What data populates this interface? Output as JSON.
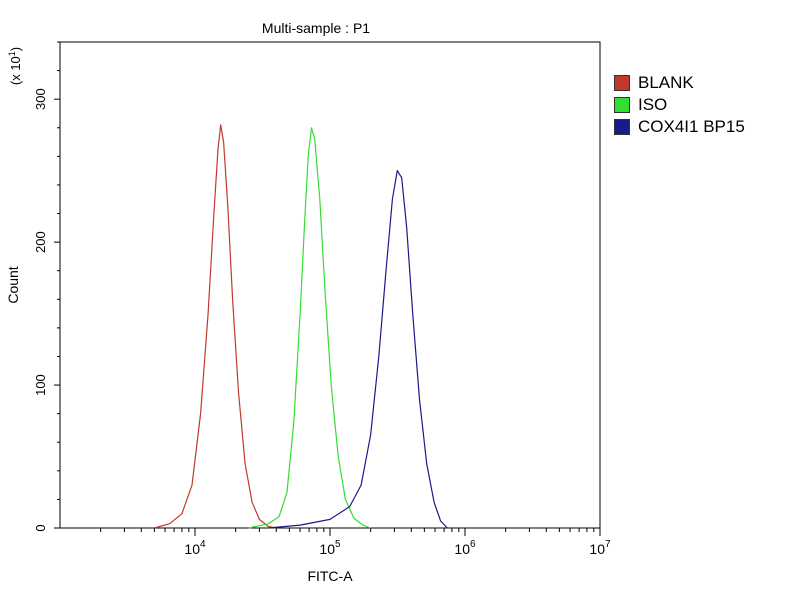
{
  "chart_data": {
    "type": "line",
    "title": "Multi-sample : P1",
    "xlabel": "FITC-A",
    "ylabel": "Count",
    "y_multiplier": "(x 10",
    "y_multiplier_exp": "1",
    "x_scale": "log",
    "xlim": [
      1000,
      10000000
    ],
    "ylim": [
      0,
      340
    ],
    "y_ticks": [
      {
        "value": 0,
        "label": "0"
      },
      {
        "value": 100,
        "label": "100"
      },
      {
        "value": 200,
        "label": "200"
      },
      {
        "value": 300,
        "label": "300"
      }
    ],
    "x_ticks": [
      {
        "value": 10000,
        "base": "10",
        "exp": "4"
      },
      {
        "value": 100000,
        "base": "10",
        "exp": "5"
      },
      {
        "value": 1000000,
        "base": "10",
        "exp": "6"
      },
      {
        "value": 10000000,
        "base": "10",
        "exp": "7"
      }
    ],
    "grid": false,
    "legend_position": "right",
    "series": [
      {
        "name": "BLANK",
        "color": "#c0392b",
        "points": [
          [
            5000,
            0
          ],
          [
            6500,
            3
          ],
          [
            8000,
            10
          ],
          [
            9500,
            30
          ],
          [
            11000,
            80
          ],
          [
            12500,
            150
          ],
          [
            13800,
            220
          ],
          [
            14800,
            265
          ],
          [
            15500,
            282
          ],
          [
            16300,
            270
          ],
          [
            17500,
            225
          ],
          [
            19000,
            160
          ],
          [
            21000,
            95
          ],
          [
            23500,
            45
          ],
          [
            26500,
            18
          ],
          [
            30000,
            6
          ],
          [
            35000,
            1
          ],
          [
            40000,
            0
          ]
        ]
      },
      {
        "name": "ISO",
        "color": "#33dd33",
        "points": [
          [
            25000,
            0
          ],
          [
            35000,
            3
          ],
          [
            42000,
            8
          ],
          [
            48000,
            25
          ],
          [
            54000,
            75
          ],
          [
            60000,
            150
          ],
          [
            65000,
            215
          ],
          [
            69000,
            260
          ],
          [
            73000,
            280
          ],
          [
            77000,
            272
          ],
          [
            84000,
            230
          ],
          [
            92000,
            165
          ],
          [
            102000,
            100
          ],
          [
            115000,
            50
          ],
          [
            130000,
            20
          ],
          [
            150000,
            7
          ],
          [
            175000,
            2
          ],
          [
            200000,
            0
          ]
        ]
      },
      {
        "name": "COX4I1 BP15",
        "color": "#1a1a8c",
        "points": [
          [
            35000,
            0
          ],
          [
            60000,
            2
          ],
          [
            100000,
            6
          ],
          [
            140000,
            15
          ],
          [
            170000,
            30
          ],
          [
            200000,
            65
          ],
          [
            230000,
            120
          ],
          [
            260000,
            180
          ],
          [
            290000,
            230
          ],
          [
            315000,
            250
          ],
          [
            340000,
            245
          ],
          [
            370000,
            210
          ],
          [
            410000,
            150
          ],
          [
            460000,
            90
          ],
          [
            520000,
            45
          ],
          [
            590000,
            18
          ],
          [
            660000,
            5
          ],
          [
            740000,
            0
          ]
        ]
      }
    ]
  }
}
